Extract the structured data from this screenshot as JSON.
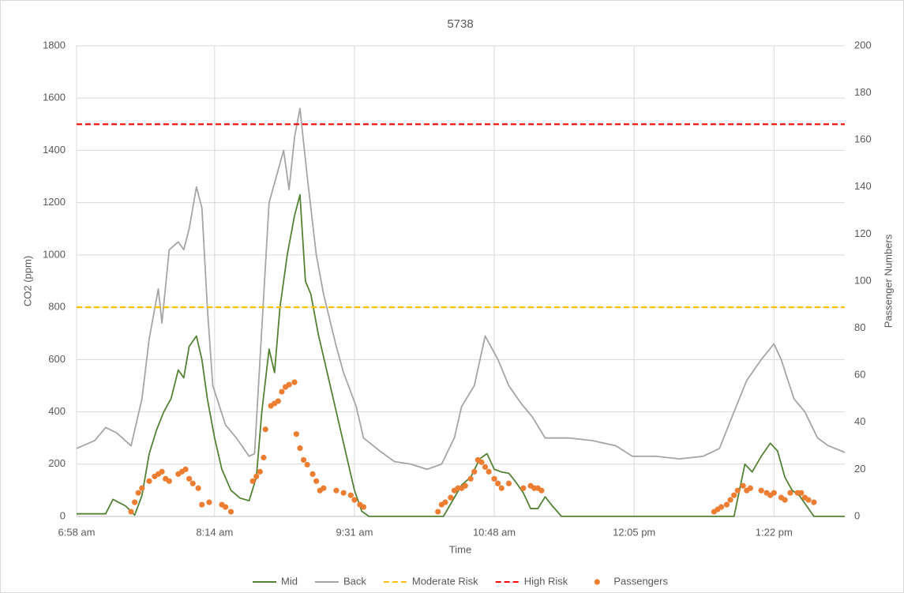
{
  "chart_data": {
    "type": "line",
    "title": "5738",
    "xlabel": "Time",
    "ylabel": "CO2 (ppm)",
    "y2label": "Passenger Numbers",
    "xlim": [
      418,
      841
    ],
    "xticks": [
      {
        "value": 418,
        "label": "6:58 am"
      },
      {
        "value": 494,
        "label": "8:14 am"
      },
      {
        "value": 571,
        "label": "9:31 am"
      },
      {
        "value": 648,
        "label": "10:48 am"
      },
      {
        "value": 725,
        "label": "12:05 pm"
      },
      {
        "value": 802,
        "label": "1:22 pm"
      }
    ],
    "ylim": [
      0,
      1800
    ],
    "yticks": [
      0,
      200,
      400,
      600,
      800,
      1000,
      1200,
      1400,
      1600,
      1800
    ],
    "y2lim": [
      0,
      200
    ],
    "y2ticks": [
      0,
      20,
      40,
      60,
      80,
      100,
      120,
      140,
      160,
      180,
      200
    ],
    "grid": true,
    "legend": "bottom",
    "series": [
      {
        "name": "Mid",
        "type": "line",
        "color": "#548235",
        "x": [
          418,
          434,
          438,
          445,
          450,
          454,
          458,
          462,
          466,
          470,
          474,
          477,
          480,
          484,
          487,
          490,
          494,
          498,
          503,
          508,
          513,
          517,
          520,
          524,
          527,
          530,
          534,
          538,
          541,
          544,
          547,
          551,
          556,
          561,
          566,
          571,
          575,
          579,
          620,
          625,
          630,
          635,
          640,
          644,
          648,
          652,
          656,
          660,
          664,
          668,
          672,
          676,
          680,
          685,
          780,
          786,
          790,
          795,
          800,
          804,
          808,
          812,
          816,
          820,
          824,
          841
        ],
        "values": [
          10,
          10,
          65,
          40,
          5,
          80,
          240,
          330,
          400,
          450,
          560,
          530,
          650,
          690,
          600,
          450,
          300,
          180,
          100,
          70,
          60,
          150,
          400,
          640,
          550,
          800,
          1000,
          1150,
          1230,
          900,
          850,
          700,
          550,
          400,
          250,
          100,
          20,
          0,
          0,
          60,
          120,
          150,
          220,
          240,
          180,
          170,
          165,
          130,
          90,
          30,
          30,
          75,
          40,
          0,
          0,
          200,
          170,
          230,
          280,
          250,
          150,
          100,
          80,
          40,
          0,
          0
        ]
      },
      {
        "name": "Back",
        "type": "line",
        "color": "#a5a5a5",
        "x": [
          418,
          428,
          434,
          440,
          448,
          454,
          458,
          463,
          465,
          469,
          474,
          477,
          480,
          484,
          487,
          490,
          493,
          500,
          506,
          513,
          516,
          519,
          524,
          528,
          532,
          535,
          538,
          541,
          545,
          550,
          554,
          561,
          565,
          572,
          576,
          585,
          593,
          602,
          611,
          619,
          626,
          630,
          637,
          643,
          650,
          656,
          663,
          669,
          676,
          689,
          702,
          715,
          724,
          737,
          750,
          763,
          772,
          780,
          787,
          795,
          802,
          806,
          813,
          819,
          826,
          832,
          841
        ],
        "values": [
          260,
          290,
          340,
          320,
          270,
          450,
          680,
          870,
          740,
          1020,
          1050,
          1020,
          1100,
          1260,
          1180,
          800,
          500,
          350,
          300,
          230,
          240,
          600,
          1200,
          1300,
          1400,
          1250,
          1450,
          1560,
          1300,
          1000,
          850,
          650,
          550,
          420,
          300,
          250,
          210,
          200,
          180,
          200,
          300,
          420,
          500,
          690,
          600,
          500,
          430,
          380,
          300,
          300,
          290,
          270,
          230,
          230,
          220,
          230,
          260,
          400,
          520,
          600,
          660,
          600,
          450,
          400,
          300,
          270,
          245
        ]
      },
      {
        "name": "Moderate Risk",
        "type": "line",
        "dash": true,
        "color": "#ffc000",
        "x": [
          418,
          841
        ],
        "values": [
          800,
          800
        ]
      },
      {
        "name": "High Risk",
        "type": "line",
        "dash": true,
        "color": "#ff0000",
        "x": [
          418,
          841
        ],
        "values": [
          1500,
          1500
        ]
      },
      {
        "name": "Passengers",
        "type": "scatter",
        "axis": "y2",
        "color": "#ed7d31",
        "x": [
          448,
          450,
          452,
          454,
          458,
          461,
          463,
          465,
          467,
          469,
          474,
          476,
          478,
          480,
          482,
          485,
          487,
          491,
          498,
          500,
          503,
          515,
          517,
          519,
          521,
          522,
          525,
          527,
          529,
          531,
          533,
          535,
          538,
          539,
          541,
          543,
          545,
          548,
          550,
          552,
          554,
          561,
          565,
          569,
          571,
          574,
          576,
          617,
          619,
          621,
          624,
          626,
          628,
          630,
          632,
          635,
          637,
          639,
          641,
          643,
          645,
          648,
          650,
          652,
          656,
          664,
          668,
          670,
          672,
          674,
          769,
          771,
          773,
          776,
          778,
          780,
          782,
          785,
          787,
          789,
          795,
          798,
          800,
          802,
          806,
          808,
          811,
          815,
          817,
          819,
          821,
          824
        ],
        "values": [
          2,
          6,
          10,
          12,
          15,
          17,
          18,
          19,
          16,
          15,
          18,
          19,
          20,
          16,
          14,
          12,
          5,
          6,
          5,
          4,
          2,
          15,
          17,
          19,
          25,
          37,
          47,
          48,
          49,
          53,
          55,
          56,
          57,
          35,
          29,
          24,
          22,
          18,
          15,
          11,
          12,
          11,
          10,
          9,
          7,
          5,
          4,
          2,
          5,
          6,
          8,
          11,
          12,
          12,
          13,
          16,
          19,
          24,
          23,
          21,
          19,
          16,
          14,
          12,
          14,
          12,
          13,
          12,
          12,
          11,
          2,
          3,
          4,
          5,
          7,
          9,
          11,
          13,
          11,
          12,
          11,
          10,
          9,
          10,
          8,
          7,
          10,
          10,
          10,
          8,
          7,
          6
        ]
      }
    ]
  }
}
